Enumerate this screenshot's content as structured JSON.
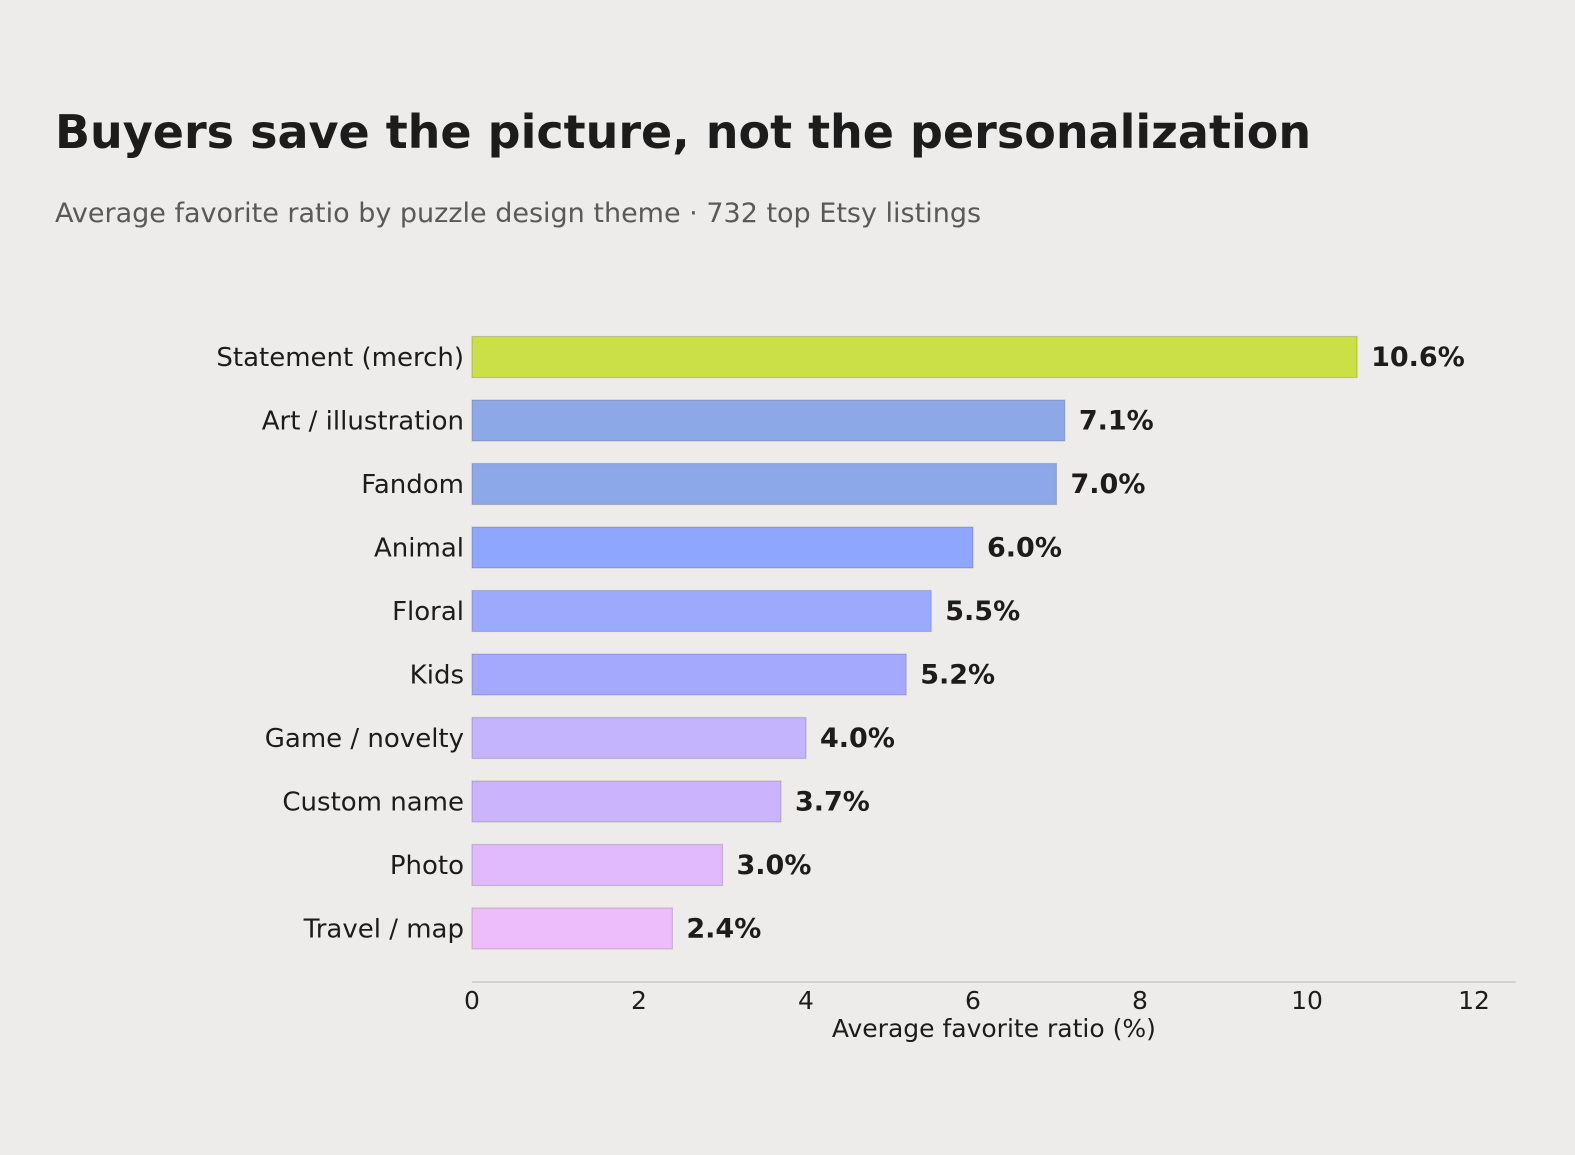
{
  "header": {
    "title": "Buyers save the picture, not the personalization",
    "subtitle": "Average favorite ratio by puzzle design theme · 732 top Etsy listings"
  },
  "chart_data": {
    "type": "bar",
    "orientation": "horizontal",
    "categories": [
      "Statement (merch)",
      "Art / illustration",
      "Fandom",
      "Animal",
      "Floral",
      "Kids",
      "Game / novelty",
      "Custom name",
      "Photo",
      "Travel / map"
    ],
    "values": [
      10.6,
      7.1,
      7.0,
      6.0,
      5.5,
      5.2,
      4.0,
      3.7,
      3.0,
      2.4
    ],
    "value_labels": [
      "10.6%",
      "7.1%",
      "7.0%",
      "6.0%",
      "5.5%",
      "5.2%",
      "4.0%",
      "3.7%",
      "3.0%",
      "2.4%"
    ],
    "colors": [
      "#cbdf46",
      "#8ca8e6",
      "#8ca8e9",
      "#8ea6fd",
      "#9caafe",
      "#a4a9fd",
      "#c4b3fd",
      "#cbb4fc",
      "#dfbafc",
      "#edbdfb"
    ],
    "xlabel": "Average favorite ratio (%)",
    "ylabel": "",
    "xlim": [
      0,
      12.5
    ],
    "xticks": [
      0,
      2,
      4,
      6,
      8,
      10,
      12
    ],
    "grid": false,
    "legend": "none"
  }
}
